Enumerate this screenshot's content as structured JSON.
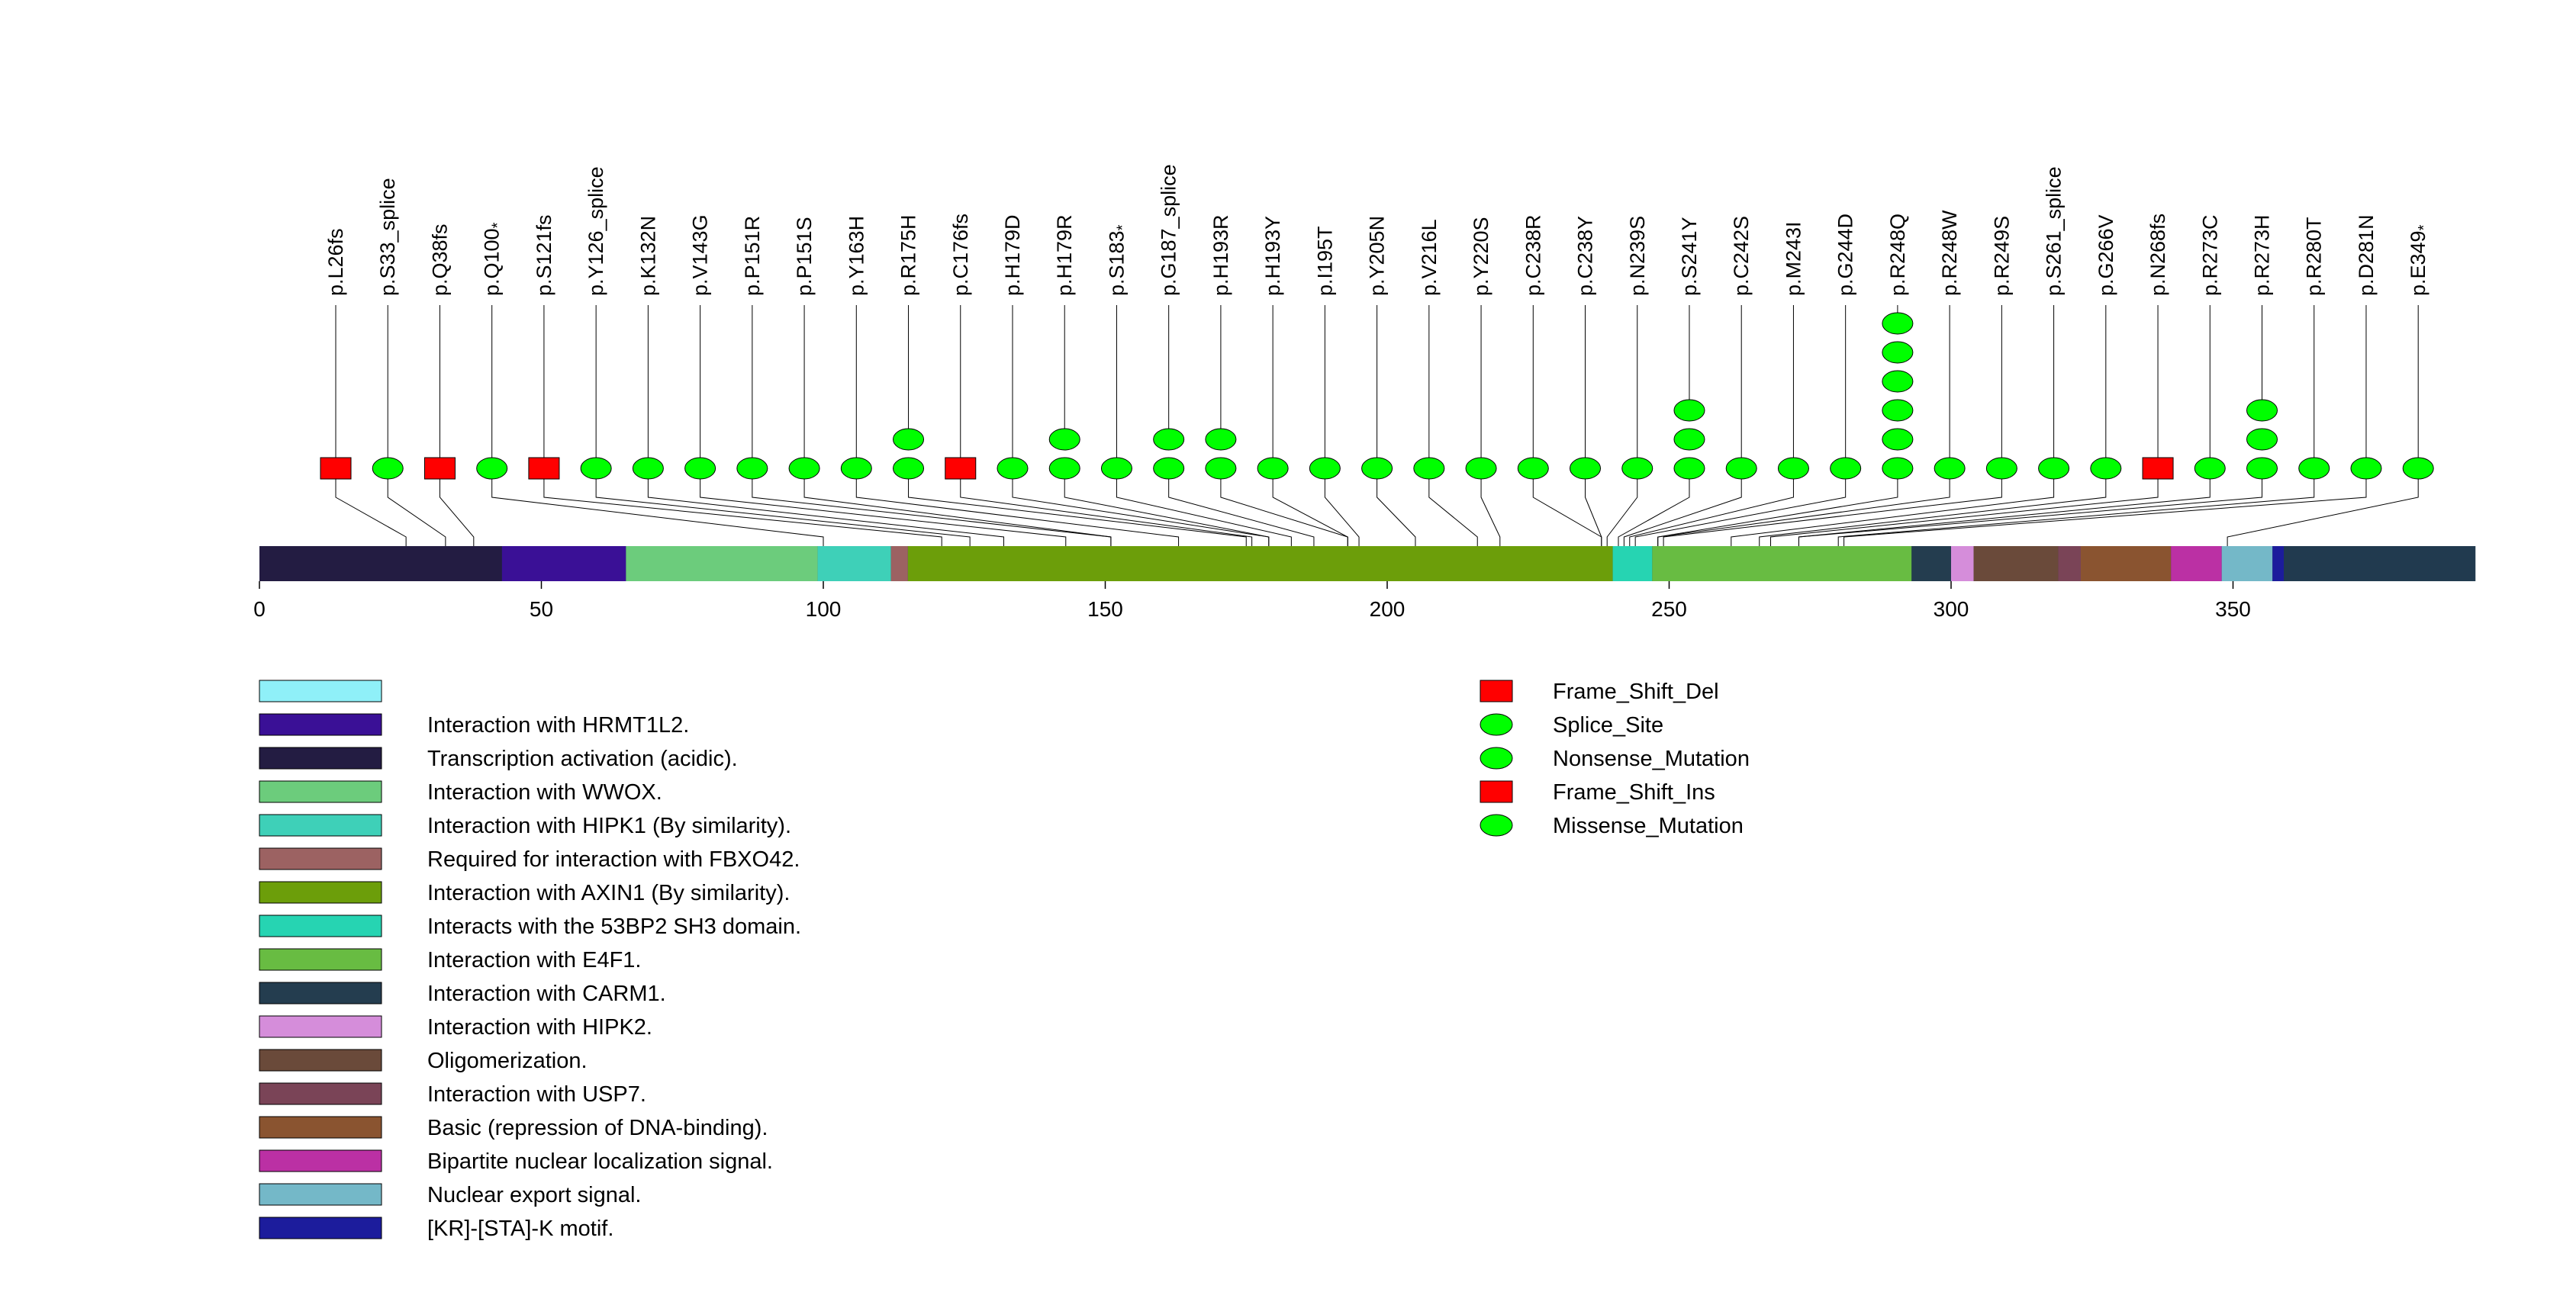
{
  "chart_data": {
    "type": "lollipop",
    "title": "",
    "xlabel": "",
    "ylabel": "",
    "xlim": [
      0,
      393
    ],
    "x_ticks": [
      0,
      50,
      100,
      150,
      200,
      250,
      300,
      350
    ],
    "mutation_types": [
      {
        "name": "Frame_Shift_Del",
        "shape": "rect",
        "color": "#ff0000"
      },
      {
        "name": "Splice_Site",
        "shape": "ellipse",
        "color": "#00ff00"
      },
      {
        "name": "Nonsense_Mutation",
        "shape": "ellipse",
        "color": "#00ff00"
      },
      {
        "name": "Frame_Shift_Ins",
        "shape": "rect",
        "color": "#ff0000"
      },
      {
        "name": "Missense_Mutation",
        "shape": "ellipse",
        "color": "#00ff00"
      }
    ],
    "mutations": [
      {
        "label": "p.L26fs",
        "pos": 26,
        "markers": [
          "Frame_Shift_Del"
        ]
      },
      {
        "label": "p.S33_splice",
        "pos": 33,
        "markers": [
          "Splice_Site"
        ]
      },
      {
        "label": "p.Q38fs",
        "pos": 38,
        "markers": [
          "Frame_Shift_Del"
        ]
      },
      {
        "label": "p.Q100",
        "star": "*",
        "pos": 100,
        "markers": [
          "Nonsense_Mutation"
        ]
      },
      {
        "label": "p.S121fs",
        "pos": 121,
        "markers": [
          "Frame_Shift_Del"
        ]
      },
      {
        "label": "p.Y126_splice",
        "pos": 126,
        "markers": [
          "Splice_Site"
        ]
      },
      {
        "label": "p.K132N",
        "pos": 132,
        "markers": [
          "Missense_Mutation"
        ]
      },
      {
        "label": "p.V143G",
        "pos": 143,
        "markers": [
          "Missense_Mutation"
        ]
      },
      {
        "label": "p.P151R",
        "pos": 151,
        "markers": [
          "Missense_Mutation"
        ]
      },
      {
        "label": "p.P151S",
        "pos": 151,
        "markers": [
          "Missense_Mutation"
        ]
      },
      {
        "label": "p.Y163H",
        "pos": 163,
        "markers": [
          "Missense_Mutation"
        ]
      },
      {
        "label": "p.R175H",
        "pos": 175,
        "markers": [
          "Missense_Mutation",
          "Missense_Mutation"
        ]
      },
      {
        "label": "p.C176fs",
        "pos": 176,
        "markers": [
          "Frame_Shift_Del"
        ]
      },
      {
        "label": "p.H179D",
        "pos": 179,
        "markers": [
          "Missense_Mutation"
        ]
      },
      {
        "label": "p.H179R",
        "pos": 179,
        "markers": [
          "Missense_Mutation",
          "Missense_Mutation"
        ]
      },
      {
        "label": "p.S183",
        "star": "*",
        "pos": 183,
        "markers": [
          "Nonsense_Mutation"
        ]
      },
      {
        "label": "p.G187_splice",
        "pos": 187,
        "markers": [
          "Splice_Site",
          "Splice_Site"
        ]
      },
      {
        "label": "p.H193R",
        "pos": 193,
        "markers": [
          "Missense_Mutation",
          "Missense_Mutation"
        ]
      },
      {
        "label": "p.H193Y",
        "pos": 193,
        "markers": [
          "Missense_Mutation"
        ]
      },
      {
        "label": "p.I195T",
        "pos": 195,
        "markers": [
          "Missense_Mutation"
        ]
      },
      {
        "label": "p.Y205N",
        "pos": 205,
        "markers": [
          "Missense_Mutation"
        ]
      },
      {
        "label": "p.V216L",
        "pos": 216,
        "markers": [
          "Missense_Mutation"
        ]
      },
      {
        "label": "p.Y220S",
        "pos": 220,
        "markers": [
          "Missense_Mutation"
        ]
      },
      {
        "label": "p.C238R",
        "pos": 238,
        "markers": [
          "Missense_Mutation"
        ]
      },
      {
        "label": "p.C238Y",
        "pos": 238,
        "markers": [
          "Missense_Mutation"
        ]
      },
      {
        "label": "p.N239S",
        "pos": 239,
        "markers": [
          "Missense_Mutation"
        ]
      },
      {
        "label": "p.S241Y",
        "pos": 241,
        "markers": [
          "Missense_Mutation",
          "Missense_Mutation",
          "Missense_Mutation"
        ]
      },
      {
        "label": "p.C242S",
        "pos": 242,
        "markers": [
          "Missense_Mutation"
        ]
      },
      {
        "label": "p.M243I",
        "pos": 243,
        "markers": [
          "Missense_Mutation"
        ]
      },
      {
        "label": "p.G244D",
        "pos": 244,
        "markers": [
          "Missense_Mutation"
        ]
      },
      {
        "label": "p.R248Q",
        "pos": 248,
        "markers": [
          "Missense_Mutation",
          "Missense_Mutation",
          "Missense_Mutation",
          "Missense_Mutation",
          "Missense_Mutation",
          "Missense_Mutation"
        ]
      },
      {
        "label": "p.R248W",
        "pos": 248,
        "markers": [
          "Missense_Mutation"
        ]
      },
      {
        "label": "p.R249S",
        "pos": 249,
        "markers": [
          "Missense_Mutation"
        ]
      },
      {
        "label": "p.S261_splice",
        "pos": 261,
        "markers": [
          "Splice_Site"
        ]
      },
      {
        "label": "p.G266V",
        "pos": 266,
        "markers": [
          "Missense_Mutation"
        ]
      },
      {
        "label": "p.N268fs",
        "pos": 268,
        "markers": [
          "Frame_Shift_Del"
        ]
      },
      {
        "label": "p.R273C",
        "pos": 273,
        "markers": [
          "Missense_Mutation"
        ]
      },
      {
        "label": "p.R273H",
        "pos": 273,
        "markers": [
          "Missense_Mutation",
          "Missense_Mutation",
          "Missense_Mutation"
        ]
      },
      {
        "label": "p.R280T",
        "pos": 280,
        "markers": [
          "Missense_Mutation"
        ]
      },
      {
        "label": "p.D281N",
        "pos": 281,
        "markers": [
          "Missense_Mutation"
        ]
      },
      {
        "label": "p.E349",
        "star": "*",
        "pos": 349,
        "markers": [
          "Nonsense_Mutation"
        ]
      }
    ],
    "domains": [
      {
        "name": "",
        "color": "#8ff0f8",
        "start": 0,
        "end": 0
      },
      {
        "name": "Interaction with HRMT1L2.",
        "color": "#3a1096",
        "start": 43,
        "end": 65
      },
      {
        "name": "Transcription activation (acidic).",
        "color": "#231c42",
        "start": 0,
        "end": 43
      },
      {
        "name": "Interaction with WWOX.",
        "color": "#6ccc7c",
        "start": 65,
        "end": 99
      },
      {
        "name": "Interaction with HIPK1 (By similarity).",
        "color": "#3ed0b8",
        "start": 99,
        "end": 112
      },
      {
        "name": "Required for interaction with FBXO42.",
        "color": "#9c6262",
        "start": 112,
        "end": 115
      },
      {
        "name": "Interaction with AXIN1 (By similarity).",
        "color": "#6c9e0a",
        "start": 115,
        "end": 240
      },
      {
        "name": "Interacts with the 53BP2 SH3 domain.",
        "color": "#26d4b2",
        "start": 240,
        "end": 247
      },
      {
        "name": "Interaction with E4F1.",
        "color": "#68bc42",
        "start": 247,
        "end": 293
      },
      {
        "name": "Interaction with CARM1.",
        "color": "#243d4f",
        "start": 293,
        "end": 300
      },
      {
        "name": "Interaction with HIPK2.",
        "color": "#d58dda",
        "start": 300,
        "end": 304
      },
      {
        "name": "Oligomerization.",
        "color": "#6a4a3a",
        "start": 304,
        "end": 319
      },
      {
        "name": "Interaction with USP7.",
        "color": "#7a4457",
        "start": 319,
        "end": 323
      },
      {
        "name": "Basic (repression of DNA-binding).",
        "color": "#8a5430",
        "start": 323,
        "end": 339
      },
      {
        "name": "Bipartite nuclear localization signal.",
        "color": "#bb30a4",
        "start": 339,
        "end": 348
      },
      {
        "name": "Nuclear export signal.",
        "color": "#74b8c8",
        "start": 348,
        "end": 357
      },
      {
        "name": "[KR]-[STA]-K motif.",
        "color": "#1c1c9c",
        "start": 357,
        "end": 359
      }
    ]
  }
}
